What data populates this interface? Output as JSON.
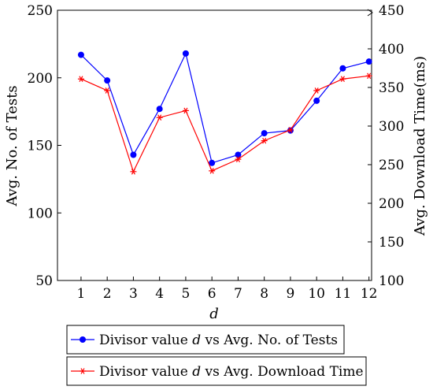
{
  "chart_data": {
    "type": "line",
    "x": [
      1,
      2,
      3,
      4,
      5,
      6,
      7,
      8,
      9,
      10,
      11,
      12
    ],
    "xlabel": "d",
    "ylabel_left": "Avg. No. of Tests",
    "ylabel_right": "Avg. Download Time(ms)",
    "left_axis": {
      "range": [
        50,
        250
      ],
      "ticks": [
        50,
        100,
        150,
        200,
        250
      ]
    },
    "right_axis": {
      "range": [
        100,
        450
      ],
      "ticks": [
        100,
        150,
        200,
        250,
        300,
        350,
        400,
        450
      ]
    },
    "grid": false,
    "legend_placement": "bottom",
    "series": [
      {
        "name_prefix": "Divisor value",
        "name_var": "d",
        "name_suffix": "vs Avg. No. of Tests",
        "axis": "left",
        "color": "#0000ff",
        "marker": "circle",
        "values": [
          217,
          198,
          143,
          177,
          218,
          137,
          143,
          159,
          161,
          183,
          207,
          212
        ]
      },
      {
        "name_prefix": "Divisor value",
        "name_var": "d",
        "name_suffix": "vs Avg. Download Time",
        "axis": "right",
        "color": "#ff0000",
        "marker": "asterisk",
        "values": [
          361,
          346,
          241,
          311,
          320,
          242,
          257,
          281,
          295,
          346,
          361,
          365
        ]
      }
    ]
  }
}
